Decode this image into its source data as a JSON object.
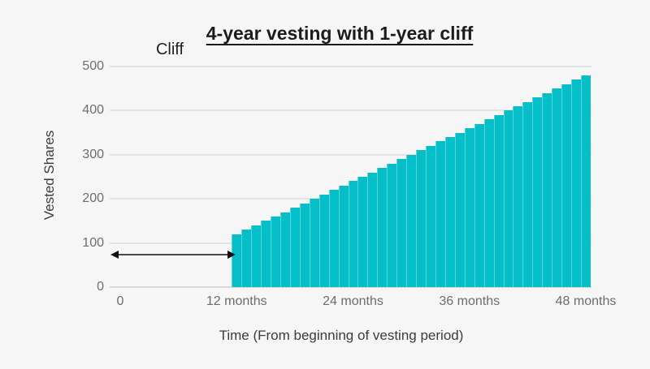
{
  "title": "4-year vesting with 1-year cliff",
  "annotation": {
    "label": "Cliff"
  },
  "y_axis": {
    "title": "Vested Shares",
    "ticks": [
      0,
      100,
      200,
      300,
      400,
      500
    ]
  },
  "x_axis": {
    "title": "Time (From beginning of vesting period)",
    "ticks": [
      {
        "label": "0",
        "month": 0
      },
      {
        "label": "12 months",
        "month": 12
      },
      {
        "label": "24 months",
        "month": 24
      },
      {
        "label": "36 months",
        "month": 36
      },
      {
        "label": "48 months",
        "month": 48
      }
    ]
  },
  "chart_data": {
    "type": "bar",
    "title": "4-year vesting with 1-year cliff",
    "xlabel": "Time (From beginning of vesting period)",
    "ylabel": "Vested Shares",
    "ylim": [
      0,
      500
    ],
    "x_months": [
      12,
      13,
      14,
      15,
      16,
      17,
      18,
      19,
      20,
      21,
      22,
      23,
      24,
      25,
      26,
      27,
      28,
      29,
      30,
      31,
      32,
      33,
      34,
      35,
      36,
      37,
      38,
      39,
      40,
      41,
      42,
      43,
      44,
      45,
      46,
      47,
      48
    ],
    "values": [
      120,
      130,
      140,
      150,
      160,
      170,
      180,
      190,
      200,
      210,
      220,
      230,
      240,
      250,
      260,
      270,
      280,
      290,
      300,
      310,
      320,
      330,
      340,
      350,
      360,
      370,
      380,
      390,
      400,
      410,
      420,
      430,
      440,
      450,
      460,
      470,
      480
    ],
    "shares_per_month": 10,
    "total_shares": 480,
    "grid": true,
    "legend": "none",
    "bar_color": "#04bfc8",
    "gridline_color": "#e3e3e3",
    "background_color": "#f6f6f6",
    "annotation": {
      "text": "Cliff",
      "arrow_start_month": 0,
      "arrow_end_month": 12,
      "arrow_y_value": 73
    }
  }
}
